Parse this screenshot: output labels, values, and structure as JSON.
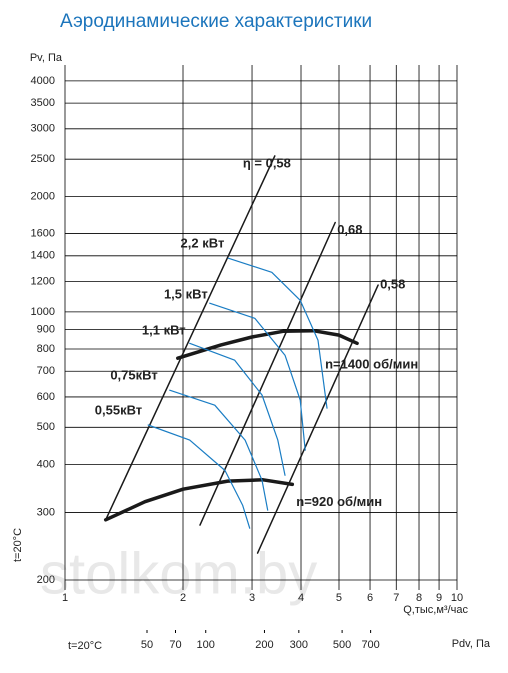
{
  "chart_data": {
    "type": "line",
    "title": "Аэродинамические характеристики",
    "ylabel": "Pv, Па",
    "xlabel": "Q,тыс,м³/час",
    "side_note": "t=20°C",
    "watermark": "stolkom.by",
    "log_scale": true,
    "grid": true,
    "xlim": [
      1,
      10
    ],
    "xticks": [
      1,
      2,
      3,
      4,
      5,
      6,
      7,
      8,
      9,
      10
    ],
    "ylim": [
      200,
      4400
    ],
    "yticks": [
      200,
      300,
      400,
      500,
      600,
      700,
      800,
      900,
      1000,
      1200,
      1400,
      1600,
      2000,
      2500,
      3000,
      3500,
      4000
    ],
    "x2lim": [
      19,
      1940
    ],
    "x2ticks": [
      50,
      70,
      100,
      200,
      300,
      500,
      700
    ],
    "x2label": "Pdv, Па",
    "x2note": "t=20°C",
    "series": [
      {
        "name": "n=1400 об/мин",
        "color": "#1a1a1a",
        "width": 3.5,
        "x": [
          1.94,
          2.5,
          3,
          3.6,
          4.3,
          5,
          5.56
        ],
        "values": [
          757,
          820,
          860,
          890,
          893,
          870,
          828
        ]
      },
      {
        "name": "n=920 об/мин",
        "color": "#1a1a1a",
        "width": 3.5,
        "x": [
          1.27,
          1.6,
          2,
          2.6,
          3.2,
          3.8
        ],
        "values": [
          287,
          320,
          345,
          362,
          365,
          355
        ]
      },
      {
        "name": "η = 0,58",
        "color": "#1a1a1a",
        "width": 1.5,
        "x": [
          1.27,
          3.43
        ],
        "values": [
          287,
          2550
        ]
      },
      {
        "name": "0,68",
        "color": "#1a1a1a",
        "width": 1.5,
        "x": [
          2.21,
          4.89
        ],
        "values": [
          278,
          1710
        ]
      },
      {
        "name": "0,58",
        "color": "#1a1a1a",
        "width": 1.5,
        "x": [
          3.1,
          6.29
        ],
        "values": [
          235,
          1174
        ]
      },
      {
        "name": "2,2 кВт",
        "color": "#1a7dc4",
        "width": 1.2,
        "x": [
          2.61,
          3.37,
          3.98,
          4.42,
          4.66
        ],
        "values": [
          1380,
          1268,
          1072,
          843,
          561
        ]
      },
      {
        "name": "1,5 кВт",
        "color": "#1a7dc4",
        "width": 1.2,
        "x": [
          2.34,
          3.05,
          3.64,
          3.98,
          4.1
        ],
        "values": [
          1053,
          962,
          771,
          589,
          436
        ]
      },
      {
        "name": "1,1 кВт",
        "color": "#1a7dc4",
        "width": 1.2,
        "x": [
          2.08,
          2.71,
          3.18,
          3.49,
          3.64
        ],
        "values": [
          828,
          748,
          607,
          463,
          375
        ]
      },
      {
        "name": "0,75кВт",
        "color": "#1a7dc4",
        "width": 1.2,
        "x": [
          1.85,
          2.41,
          2.88,
          3.18,
          3.29
        ],
        "values": [
          625,
          571,
          463,
          364,
          304
        ]
      },
      {
        "name": "0,55кВт",
        "color": "#1a7dc4",
        "width": 1.2,
        "x": [
          1.63,
          2.08,
          2.56,
          2.84,
          2.96
        ],
        "values": [
          507,
          463,
          386,
          313,
          273
        ]
      }
    ]
  }
}
